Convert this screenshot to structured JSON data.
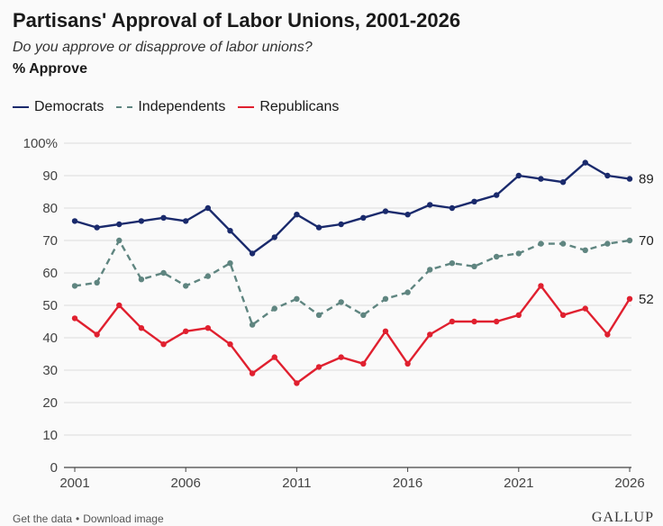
{
  "title": "Partisans' Approval of Labor Unions, 2001-2026",
  "subtitle": "Do you approve or disapprove of labor unions?",
  "unit_label": "% Approve",
  "footer": {
    "get_data": "Get the data",
    "separator": "•",
    "download": "Download image",
    "brand": "GALLUP"
  },
  "chart_data": {
    "type": "line",
    "title": "Partisans' Approval of Labor Unions, 2001-2026",
    "ylabel": "% Approve",
    "xlim": [
      2001,
      2026
    ],
    "ylim": [
      0,
      100
    ],
    "y_ticks": [
      "0",
      "10",
      "20",
      "30",
      "40",
      "50",
      "60",
      "70",
      "80",
      "90",
      "100%"
    ],
    "y_tick_values": [
      0,
      10,
      20,
      30,
      40,
      50,
      60,
      70,
      80,
      90,
      100
    ],
    "x_ticks": [
      "2001",
      "2006",
      "2011",
      "2016",
      "2021",
      "2026"
    ],
    "x_tick_values": [
      2001,
      2006,
      2011,
      2016,
      2021,
      2026
    ],
    "grid": true,
    "legend_position": "top-left",
    "x": [
      2001,
      2002,
      2003,
      2004,
      2005,
      2006,
      2007,
      2008,
      2009,
      2010,
      2011,
      2012,
      2013,
      2014,
      2015,
      2016,
      2017,
      2018,
      2019,
      2020,
      2021,
      2022,
      2023,
      2024,
      2025,
      2026
    ],
    "series": [
      {
        "name": "Democrats",
        "color": "#1a2a6c",
        "dash": false,
        "end_label": "89",
        "values": [
          76,
          74,
          75,
          76,
          77,
          76,
          80,
          73,
          66,
          71,
          78,
          74,
          75,
          77,
          79,
          78,
          81,
          80,
          82,
          84,
          90,
          89,
          88,
          94,
          90,
          89
        ]
      },
      {
        "name": "Independents",
        "color": "#5f8580",
        "dash": true,
        "end_label": "70",
        "values": [
          56,
          57,
          70,
          58,
          60,
          56,
          59,
          63,
          44,
          49,
          52,
          47,
          51,
          47,
          52,
          54,
          61,
          63,
          62,
          65,
          66,
          69,
          69,
          67,
          69,
          70
        ]
      },
      {
        "name": "Republicans",
        "color": "#e0202f",
        "dash": false,
        "end_label": "52",
        "values": [
          46,
          41,
          50,
          43,
          38,
          42,
          43,
          38,
          29,
          34,
          26,
          31,
          34,
          32,
          42,
          32,
          41,
          45,
          45,
          45,
          47,
          56,
          47,
          49,
          41,
          52
        ]
      }
    ]
  }
}
